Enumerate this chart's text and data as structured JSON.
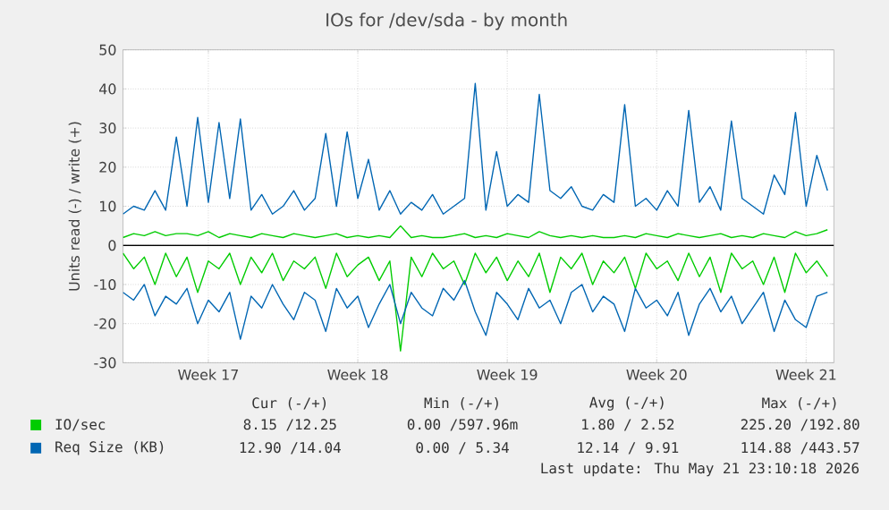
{
  "chart_data": {
    "type": "line",
    "title": "IOs for /dev/sda - by month",
    "ylabel": "Units read (-) / write (+)",
    "categories": [
      null,
      null,
      null,
      null,
      null,
      null,
      null,
      null,
      "Week 17",
      null,
      null,
      null,
      null,
      null,
      null,
      null,
      null,
      null,
      null,
      null,
      null,
      null,
      "Week 18",
      null,
      null,
      null,
      null,
      null,
      null,
      null,
      null,
      null,
      null,
      null,
      null,
      null,
      "Week 19",
      null,
      null,
      null,
      null,
      null,
      null,
      null,
      null,
      null,
      null,
      null,
      null,
      null,
      "Week 20",
      null,
      null,
      null,
      null,
      null,
      null,
      null,
      null,
      null,
      null,
      null,
      null,
      null,
      "Week 21",
      null,
      null
    ],
    "ylim": [
      -30,
      50
    ],
    "yticks": [
      -30,
      -20,
      -10,
      0,
      10,
      20,
      30,
      40,
      50
    ],
    "grid": true,
    "legend": "bottom",
    "ref_lines": [
      {
        "axis": "y",
        "value": 0,
        "color": "#000000"
      }
    ],
    "series": [
      {
        "name": "Req Size (KB)",
        "color": "#0066b3",
        "values": [
          8,
          10,
          9,
          14,
          9,
          27.7,
          10,
          32.7,
          11,
          31.4,
          12,
          32.3,
          9,
          13,
          8,
          10,
          14,
          9,
          12,
          28.6,
          10,
          29,
          12,
          22,
          9,
          14,
          8,
          11,
          9,
          13,
          8,
          10,
          12,
          41.4,
          9,
          24,
          10,
          13,
          11,
          38.6,
          14,
          12,
          15,
          10,
          9,
          13,
          11,
          36,
          10,
          12,
          9,
          14,
          10,
          34.5,
          11,
          15,
          9,
          31.8,
          12,
          10,
          8,
          18,
          13,
          34,
          10,
          23,
          14
        ]
      },
      {
        "name": "IO/sec",
        "color": "#00cc00",
        "values": [
          2,
          3,
          2.5,
          3.5,
          2.5,
          3,
          3,
          2.5,
          3.5,
          2,
          3,
          2.5,
          2,
          3,
          2.5,
          2,
          3,
          2.5,
          2,
          2.5,
          3,
          2,
          2.5,
          2,
          2.5,
          2,
          5,
          2,
          2.5,
          2,
          2,
          2.5,
          3,
          2,
          2.5,
          2,
          3,
          2.5,
          2,
          3.5,
          2.5,
          2,
          2.5,
          2,
          2.5,
          2,
          2,
          2.5,
          2,
          3,
          2.5,
          2,
          3,
          2.5,
          2,
          2.5,
          3,
          2,
          2.5,
          2,
          3,
          2.5,
          2,
          3.5,
          2.5,
          3,
          4
        ]
      },
      {
        "color": "#00cc00",
        "values": [
          -2,
          -6,
          -3,
          -10,
          -2,
          -8,
          -3,
          -12,
          -4,
          -6,
          -2,
          -10,
          -3,
          -7,
          -2,
          -9,
          -4,
          -6,
          -3,
          -11,
          -2,
          -8,
          -5,
          -3,
          -9,
          -4,
          -27,
          -3,
          -8,
          -2,
          -6,
          -4,
          -10,
          -2,
          -7,
          -3,
          -9,
          -4,
          -8,
          -2,
          -12,
          -3,
          -6,
          -2,
          -10,
          -4,
          -7,
          -3,
          -11,
          -2,
          -6,
          -4,
          -9,
          -2,
          -8,
          -3,
          -12,
          -2,
          -6,
          -4,
          -10,
          -3,
          -12,
          -2,
          -7,
          -4,
          -8
        ]
      },
      {
        "color": "#0066b3",
        "values": [
          -12,
          -14,
          -10,
          -18,
          -13,
          -15,
          -11,
          -20,
          -14,
          -17,
          -12,
          -24,
          -13,
          -16,
          -10,
          -15,
          -19,
          -12,
          -14,
          -22,
          -11,
          -16,
          -13,
          -21,
          -15,
          -10,
          -20,
          -12,
          -16,
          -18,
          -11,
          -14,
          -9,
          -17,
          -23,
          -12,
          -15,
          -19,
          -11,
          -16,
          -14,
          -20,
          -12,
          -10,
          -17,
          -13,
          -15,
          -22,
          -11,
          -16,
          -14,
          -18,
          -12,
          -23,
          -15,
          -11,
          -17,
          -13,
          -20,
          -16,
          -12,
          -22,
          -14,
          -19,
          -21,
          -13,
          -12
        ]
      }
    ],
    "annotations": [
      "Cur (-/+)",
      "Min (-/+)",
      "Avg (-/+)",
      "Max (-/+)",
      "8.15 /12.25",
      "0.00 /597.96m",
      "1.80 / 2.52",
      "225.20 /192.80",
      "12.90 /14.04",
      "0.00 / 5.34",
      "12.14 / 9.91",
      "114.88 /443.57",
      "Last update: Thu May 21 23:10:18 2026"
    ]
  }
}
